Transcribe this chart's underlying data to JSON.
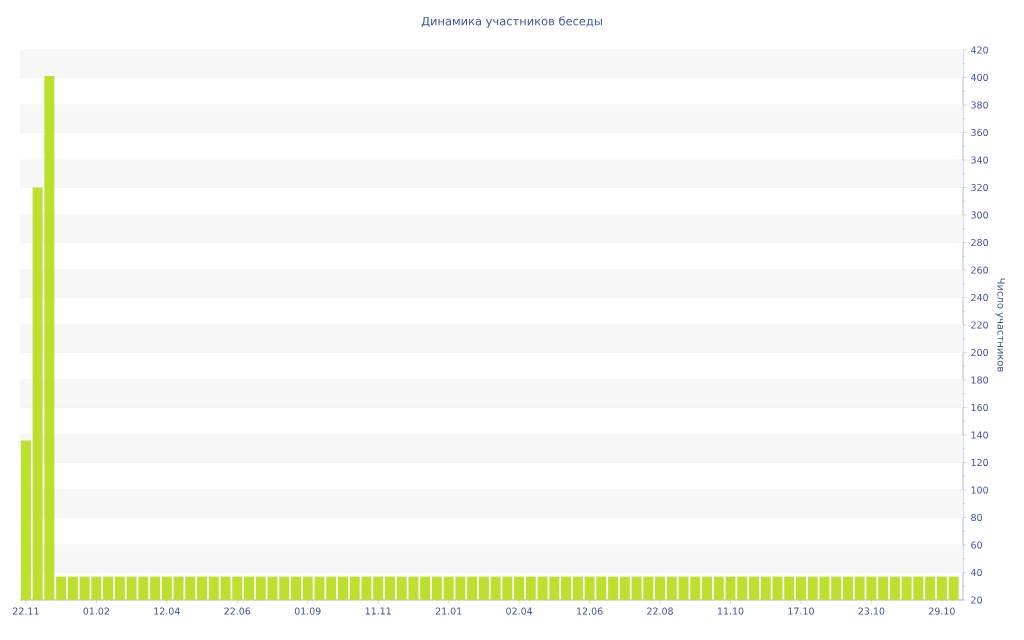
{
  "chart_data": {
    "type": "bar",
    "title": "Динамика участников беседы",
    "ylabel": "Число участников",
    "categories": [
      "22.11",
      null,
      null,
      null,
      null,
      null,
      "01.02",
      null,
      null,
      null,
      null,
      null,
      "12.04",
      null,
      null,
      null,
      null,
      null,
      "22.06",
      null,
      null,
      null,
      null,
      null,
      "01.09",
      null,
      null,
      null,
      null,
      null,
      "11.11",
      null,
      null,
      null,
      null,
      null,
      "21.01",
      null,
      null,
      null,
      null,
      null,
      "02.04",
      null,
      null,
      null,
      null,
      null,
      "12.06",
      null,
      null,
      null,
      null,
      null,
      "22.08",
      null,
      null,
      null,
      null,
      null,
      "11.10",
      null,
      null,
      null,
      null,
      null,
      "17.10",
      null,
      null,
      null,
      null,
      null,
      "23.10",
      null,
      null,
      null,
      null,
      null,
      "29.10",
      null
    ],
    "values": [
      136,
      320,
      401,
      37,
      37,
      37,
      37,
      37,
      37,
      37,
      37,
      37,
      37,
      37,
      37,
      37,
      37,
      37,
      37,
      37,
      37,
      37,
      37,
      37,
      37,
      37,
      37,
      37,
      37,
      37,
      37,
      37,
      37,
      37,
      37,
      37,
      37,
      37,
      37,
      37,
      37,
      37,
      37,
      37,
      37,
      37,
      37,
      37,
      37,
      37,
      37,
      37,
      37,
      37,
      37,
      37,
      37,
      37,
      37,
      37,
      37,
      37,
      37,
      37,
      37,
      37,
      37,
      37,
      37,
      37,
      37,
      37,
      37,
      37,
      37,
      37,
      37,
      37,
      37,
      37
    ],
    "color": "#bbe02d",
    "ylim": [
      20,
      420
    ],
    "yticks": [
      20,
      40,
      60,
      80,
      100,
      120,
      140,
      160,
      180,
      200,
      220,
      240,
      260,
      280,
      300,
      320,
      340,
      360,
      380,
      400,
      420
    ],
    "grid": "y"
  }
}
